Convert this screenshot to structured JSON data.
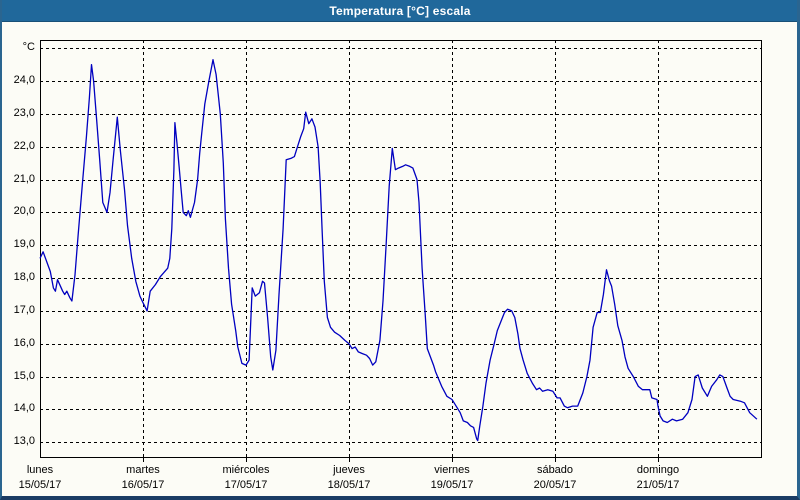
{
  "window": {
    "title": "Temperatura [°C] escala"
  },
  "colors": {
    "titlebar_bg": "#20689B",
    "window_border": "#2A6590",
    "window_border_bottom": "#1B3C64",
    "background": "#FCFCF6",
    "line": "#0000C0",
    "grid": "#000000",
    "frame": "#000000",
    "title_text": "#FFFFFF",
    "label_text": "#000000"
  },
  "chart_data": {
    "type": "line",
    "title": "Temperatura [°C] escala",
    "ylabel": "°C",
    "xlabel": "",
    "x_unit": "days_since_monday_00h",
    "xlim": [
      0,
      7
    ],
    "ylim": [
      12.55,
      25.25
    ],
    "grid": true,
    "grid_style": "dashed",
    "legend": "none",
    "y_ticks": [
      {
        "value": 25,
        "label": "°C"
      },
      {
        "value": 24,
        "label": "24,0"
      },
      {
        "value": 23,
        "label": "23,0"
      },
      {
        "value": 22,
        "label": "22,0"
      },
      {
        "value": 21,
        "label": "21,0"
      },
      {
        "value": 20,
        "label": "20,0"
      },
      {
        "value": 19,
        "label": "19,0"
      },
      {
        "value": 18,
        "label": "18,0"
      },
      {
        "value": 17,
        "label": "17,0"
      },
      {
        "value": 16,
        "label": "16,0"
      },
      {
        "value": 15,
        "label": "15,0"
      },
      {
        "value": 14,
        "label": "14,0"
      },
      {
        "value": 13,
        "label": "13,0"
      }
    ],
    "x_ticks": [
      {
        "pos": 0,
        "day": "lunes",
        "date": "15/05/17"
      },
      {
        "pos": 1,
        "day": "martes",
        "date": "16/05/17"
      },
      {
        "pos": 2,
        "day": "miércoles",
        "date": "17/05/17"
      },
      {
        "pos": 3,
        "day": "jueves",
        "date": "18/05/17"
      },
      {
        "pos": 4,
        "day": "viernes",
        "date": "19/05/17"
      },
      {
        "pos": 5,
        "day": "sábado",
        "date": "20/05/17"
      },
      {
        "pos": 6,
        "day": "domingo",
        "date": "21/05/17"
      }
    ],
    "day_boundaries": [
      1,
      2,
      3,
      4,
      5,
      6
    ],
    "series": [
      {
        "name": "Temperatura",
        "color": "#0000C0",
        "points": [
          [
            0.0,
            18.6
          ],
          [
            0.03,
            18.8
          ],
          [
            0.1,
            18.2
          ],
          [
            0.13,
            17.7
          ],
          [
            0.15,
            17.6
          ],
          [
            0.17,
            17.95
          ],
          [
            0.22,
            17.6
          ],
          [
            0.24,
            17.5
          ],
          [
            0.26,
            17.6
          ],
          [
            0.29,
            17.4
          ],
          [
            0.31,
            17.3
          ],
          [
            0.34,
            18.1
          ],
          [
            0.37,
            19.3
          ],
          [
            0.41,
            20.8
          ],
          [
            0.45,
            22.3
          ],
          [
            0.48,
            23.5
          ],
          [
            0.5,
            24.5
          ],
          [
            0.52,
            24.0
          ],
          [
            0.55,
            22.8
          ],
          [
            0.58,
            21.6
          ],
          [
            0.61,
            20.3
          ],
          [
            0.65,
            20.0
          ],
          [
            0.68,
            20.6
          ],
          [
            0.71,
            21.6
          ],
          [
            0.75,
            22.9
          ],
          [
            0.78,
            21.9
          ],
          [
            0.82,
            20.7
          ],
          [
            0.85,
            19.6
          ],
          [
            0.89,
            18.6
          ],
          [
            0.93,
            17.9
          ],
          [
            0.97,
            17.45
          ],
          [
            1.0,
            17.25
          ],
          [
            1.04,
            17.0
          ],
          [
            1.07,
            17.6
          ],
          [
            1.12,
            17.8
          ],
          [
            1.17,
            18.05
          ],
          [
            1.24,
            18.3
          ],
          [
            1.26,
            18.6
          ],
          [
            1.28,
            19.5
          ],
          [
            1.3,
            21.3
          ],
          [
            1.31,
            22.73
          ],
          [
            1.33,
            22.1
          ],
          [
            1.35,
            21.4
          ],
          [
            1.37,
            20.7
          ],
          [
            1.39,
            20.0
          ],
          [
            1.42,
            19.9
          ],
          [
            1.44,
            20.05
          ],
          [
            1.46,
            19.85
          ],
          [
            1.5,
            20.3
          ],
          [
            1.53,
            21.0
          ],
          [
            1.55,
            21.8
          ],
          [
            1.57,
            22.4
          ],
          [
            1.6,
            23.3
          ],
          [
            1.64,
            24.0
          ],
          [
            1.68,
            24.65
          ],
          [
            1.71,
            24.2
          ],
          [
            1.73,
            23.6
          ],
          [
            1.75,
            23.0
          ],
          [
            1.78,
            21.5
          ],
          [
            1.8,
            19.8
          ],
          [
            1.83,
            18.3
          ],
          [
            1.86,
            17.2
          ],
          [
            1.9,
            16.4
          ],
          [
            1.92,
            15.9
          ],
          [
            1.96,
            15.4
          ],
          [
            2.0,
            15.35
          ],
          [
            2.03,
            15.5
          ],
          [
            2.06,
            17.7
          ],
          [
            2.09,
            17.45
          ],
          [
            2.13,
            17.55
          ],
          [
            2.16,
            17.9
          ],
          [
            2.18,
            17.85
          ],
          [
            2.21,
            16.8
          ],
          [
            2.24,
            15.6
          ],
          [
            2.26,
            15.2
          ],
          [
            2.29,
            15.8
          ],
          [
            2.32,
            17.5
          ],
          [
            2.36,
            19.5
          ],
          [
            2.39,
            21.6
          ],
          [
            2.44,
            21.65
          ],
          [
            2.47,
            21.7
          ],
          [
            2.5,
            22.0
          ],
          [
            2.53,
            22.3
          ],
          [
            2.56,
            22.55
          ],
          [
            2.58,
            23.05
          ],
          [
            2.61,
            22.7
          ],
          [
            2.64,
            22.85
          ],
          [
            2.67,
            22.6
          ],
          [
            2.7,
            22.0
          ],
          [
            2.72,
            20.9
          ],
          [
            2.74,
            19.4
          ],
          [
            2.76,
            17.9
          ],
          [
            2.79,
            16.8
          ],
          [
            2.82,
            16.5
          ],
          [
            2.86,
            16.35
          ],
          [
            2.91,
            16.25
          ],
          [
            2.96,
            16.1
          ],
          [
            3.0,
            16.0
          ],
          [
            3.03,
            15.85
          ],
          [
            3.06,
            15.9
          ],
          [
            3.09,
            15.75
          ],
          [
            3.13,
            15.7
          ],
          [
            3.17,
            15.65
          ],
          [
            3.2,
            15.55
          ],
          [
            3.23,
            15.35
          ],
          [
            3.26,
            15.45
          ],
          [
            3.3,
            16.1
          ],
          [
            3.33,
            17.3
          ],
          [
            3.36,
            19.0
          ],
          [
            3.39,
            20.8
          ],
          [
            3.42,
            21.95
          ],
          [
            3.45,
            21.3
          ],
          [
            3.48,
            21.35
          ],
          [
            3.52,
            21.4
          ],
          [
            3.55,
            21.45
          ],
          [
            3.59,
            21.4
          ],
          [
            3.62,
            21.35
          ],
          [
            3.66,
            21.0
          ],
          [
            3.68,
            20.3
          ],
          [
            3.71,
            18.3
          ],
          [
            3.74,
            16.9
          ],
          [
            3.76,
            15.85
          ],
          [
            3.79,
            15.6
          ],
          [
            3.82,
            15.35
          ],
          [
            3.84,
            15.15
          ],
          [
            3.86,
            15.0
          ],
          [
            3.9,
            14.7
          ],
          [
            3.95,
            14.4
          ],
          [
            4.0,
            14.3
          ],
          [
            4.02,
            14.2
          ],
          [
            4.05,
            14.05
          ],
          [
            4.08,
            13.9
          ],
          [
            4.11,
            13.65
          ],
          [
            4.15,
            13.6
          ],
          [
            4.18,
            13.5
          ],
          [
            4.21,
            13.45
          ],
          [
            4.24,
            13.1
          ],
          [
            4.25,
            13.05
          ],
          [
            4.27,
            13.5
          ],
          [
            4.3,
            14.1
          ],
          [
            4.33,
            14.8
          ],
          [
            4.37,
            15.5
          ],
          [
            4.41,
            16.0
          ],
          [
            4.44,
            16.4
          ],
          [
            4.49,
            16.8
          ],
          [
            4.51,
            16.95
          ],
          [
            4.54,
            17.05
          ],
          [
            4.58,
            17.0
          ],
          [
            4.61,
            16.8
          ],
          [
            4.64,
            16.3
          ],
          [
            4.66,
            15.85
          ],
          [
            4.69,
            15.5
          ],
          [
            4.73,
            15.1
          ],
          [
            4.78,
            14.8
          ],
          [
            4.82,
            14.6
          ],
          [
            4.85,
            14.65
          ],
          [
            4.88,
            14.55
          ],
          [
            4.93,
            14.6
          ],
          [
            4.98,
            14.55
          ],
          [
            5.02,
            14.35
          ],
          [
            5.05,
            14.35
          ],
          [
            5.09,
            14.1
          ],
          [
            5.12,
            14.05
          ],
          [
            5.17,
            14.1
          ],
          [
            5.22,
            14.1
          ],
          [
            5.27,
            14.5
          ],
          [
            5.31,
            15.0
          ],
          [
            5.34,
            15.5
          ],
          [
            5.37,
            16.5
          ],
          [
            5.41,
            16.95
          ],
          [
            5.44,
            16.95
          ],
          [
            5.47,
            17.5
          ],
          [
            5.5,
            18.25
          ],
          [
            5.53,
            17.9
          ],
          [
            5.55,
            17.75
          ],
          [
            5.58,
            17.2
          ],
          [
            5.61,
            16.55
          ],
          [
            5.65,
            16.1
          ],
          [
            5.68,
            15.6
          ],
          [
            5.71,
            15.25
          ],
          [
            5.76,
            15.0
          ],
          [
            5.81,
            14.7
          ],
          [
            5.85,
            14.6
          ],
          [
            5.92,
            14.6
          ],
          [
            5.94,
            14.35
          ],
          [
            5.99,
            14.3
          ],
          [
            6.0,
            14.1
          ],
          [
            6.02,
            13.8
          ],
          [
            6.05,
            13.65
          ],
          [
            6.09,
            13.6
          ],
          [
            6.14,
            13.7
          ],
          [
            6.18,
            13.65
          ],
          [
            6.24,
            13.7
          ],
          [
            6.29,
            13.9
          ],
          [
            6.33,
            14.3
          ],
          [
            6.36,
            15.0
          ],
          [
            6.39,
            15.05
          ],
          [
            6.43,
            14.65
          ],
          [
            6.48,
            14.4
          ],
          [
            6.52,
            14.7
          ],
          [
            6.57,
            14.9
          ],
          [
            6.6,
            15.05
          ],
          [
            6.63,
            15.0
          ],
          [
            6.67,
            14.65
          ],
          [
            6.7,
            14.4
          ],
          [
            6.73,
            14.3
          ],
          [
            6.8,
            14.25
          ],
          [
            6.84,
            14.2
          ],
          [
            6.89,
            13.9
          ],
          [
            6.96,
            13.7
          ]
        ]
      }
    ]
  }
}
